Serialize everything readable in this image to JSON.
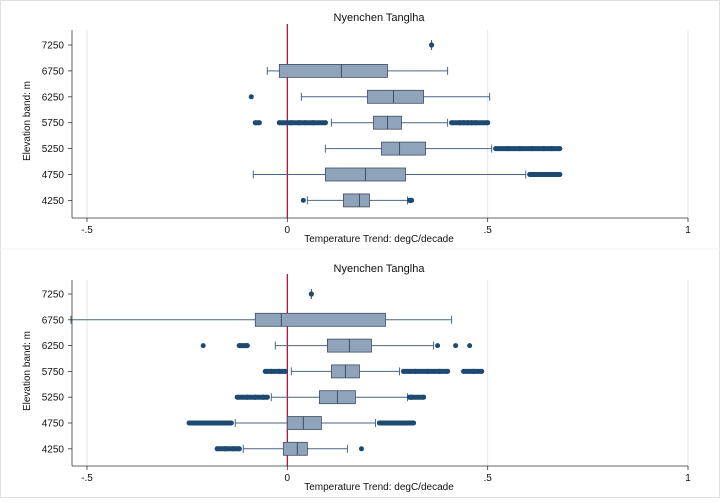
{
  "chart_data": [
    {
      "type": "boxplot",
      "orientation": "horizontal",
      "title": "Nyenchen Tanglha",
      "xlabel": "Temperature Trend: degC/decade",
      "ylabel": "Elevation band: m",
      "xlim": [
        -0.5,
        1
      ],
      "xticks": [
        -0.5,
        0,
        0.5,
        1
      ],
      "xtick_labels": [
        ".5",
        "0",
        ".5",
        "1"
      ],
      "xtick_signs": [
        "-",
        "",
        "",
        ""
      ],
      "reference_line": 0,
      "categories": [
        "7250",
        "6750",
        "6250",
        "5750",
        "5250",
        "4750",
        "4250"
      ],
      "boxes": [
        {
          "band": "7250",
          "whisker_low": 0.36,
          "q1": 0.36,
          "median": 0.36,
          "q3": 0.36,
          "whisker_high": 0.36,
          "outliers_low": [],
          "outliers_high": []
        },
        {
          "band": "6750",
          "whisker_low": -0.05,
          "q1": -0.02,
          "median": 0.135,
          "q3": 0.25,
          "whisker_high": 0.4,
          "outliers_low": [],
          "outliers_high": []
        },
        {
          "band": "6250",
          "whisker_low": 0.035,
          "q1": 0.2,
          "median": 0.265,
          "q3": 0.34,
          "whisker_high": 0.505,
          "outliers_low": [
            -0.09
          ],
          "outliers_high": []
        },
        {
          "band": "5750",
          "whisker_low": 0.11,
          "q1": 0.215,
          "median": 0.25,
          "q3": 0.285,
          "whisker_high": 0.4,
          "outliers_low": [
            -0.08,
            -0.07,
            -0.02,
            0.01,
            0.03,
            0.045,
            0.065,
            0.095
          ],
          "outliers_high": [
            0.41,
            0.43,
            0.44,
            0.45,
            0.46,
            0.47,
            0.5
          ]
        },
        {
          "band": "5250",
          "whisker_low": 0.095,
          "q1": 0.235,
          "median": 0.28,
          "q3": 0.345,
          "whisker_high": 0.51,
          "outliers_low": [],
          "outliers_high": [
            0.52,
            0.55,
            0.58,
            0.61,
            0.64,
            0.66,
            0.68
          ]
        },
        {
          "band": "4750",
          "whisker_low": -0.085,
          "q1": 0.095,
          "median": 0.195,
          "q3": 0.295,
          "whisker_high": 0.595,
          "outliers_low": [],
          "outliers_high": [
            0.605,
            0.62,
            0.64,
            0.66,
            0.68
          ]
        },
        {
          "band": "4250",
          "whisker_low": 0.05,
          "q1": 0.14,
          "median": 0.18,
          "q3": 0.205,
          "whisker_high": 0.3,
          "outliers_low": [
            0.04
          ],
          "outliers_high": [
            0.305,
            0.31
          ]
        }
      ]
    },
    {
      "type": "boxplot",
      "orientation": "horizontal",
      "title": "Nyenchen Tanglha",
      "xlabel": "Temperature Trend: degC/decade",
      "ylabel": "Elevation band: m",
      "xlim": [
        -0.5,
        1
      ],
      "xticks": [
        -0.5,
        0,
        0.5,
        1
      ],
      "xtick_labels": [
        ".5",
        "0",
        ".5",
        "1"
      ],
      "xtick_signs": [
        "-",
        "",
        "",
        ""
      ],
      "reference_line": 0,
      "categories": [
        "7250",
        "6750",
        "6250",
        "5750",
        "5250",
        "4750",
        "4250"
      ],
      "boxes": [
        {
          "band": "7250",
          "whisker_low": 0.06,
          "q1": 0.06,
          "median": 0.06,
          "q3": 0.06,
          "whisker_high": 0.06,
          "outliers_low": [],
          "outliers_high": []
        },
        {
          "band": "6750",
          "whisker_low": -0.54,
          "q1": -0.08,
          "median": -0.015,
          "q3": 0.245,
          "whisker_high": 0.41,
          "outliers_low": [],
          "outliers_high": []
        },
        {
          "band": "6250",
          "whisker_low": -0.03,
          "q1": 0.1,
          "median": 0.155,
          "q3": 0.21,
          "whisker_high": 0.365,
          "outliers_low": [
            -0.21,
            -0.12,
            -0.1
          ],
          "outliers_high": [
            0.375,
            0.42,
            0.455
          ]
        },
        {
          "band": "5750",
          "whisker_low": 0.01,
          "q1": 0.11,
          "median": 0.145,
          "q3": 0.18,
          "whisker_high": 0.28,
          "outliers_low": [
            -0.055,
            -0.04,
            -0.02,
            -0.005
          ],
          "outliers_high": [
            0.29,
            0.32,
            0.35,
            0.38,
            0.4,
            0.44,
            0.465,
            0.485
          ]
        },
        {
          "band": "5250",
          "whisker_low": -0.04,
          "q1": 0.08,
          "median": 0.125,
          "q3": 0.17,
          "whisker_high": 0.3,
          "outliers_low": [
            -0.125,
            -0.1,
            -0.08,
            -0.06,
            -0.05
          ],
          "outliers_high": [
            0.305,
            0.31,
            0.34
          ]
        },
        {
          "band": "4750",
          "whisker_low": -0.13,
          "q1": 0.0,
          "median": 0.04,
          "q3": 0.085,
          "whisker_high": 0.22,
          "outliers_low": [
            -0.245,
            -0.22,
            -0.19,
            -0.16,
            -0.14
          ],
          "outliers_high": [
            0.23,
            0.26,
            0.29,
            0.315
          ]
        },
        {
          "band": "4250",
          "whisker_low": -0.11,
          "q1": -0.01,
          "median": 0.025,
          "q3": 0.05,
          "whisker_high": 0.15,
          "outliers_low": [
            -0.175,
            -0.155,
            -0.135,
            -0.12
          ],
          "outliers_high": [
            0.185
          ]
        }
      ]
    }
  ],
  "colors": {
    "box_fill": "#8fa3bb",
    "box_stroke": "#3f4e63",
    "whisker": "#4a6784",
    "outlier": "#1e4a72",
    "reference_line": "#b8123c",
    "gridline": "#e6e6e6",
    "axis": "#333333",
    "frame": "#e0e0e0"
  }
}
